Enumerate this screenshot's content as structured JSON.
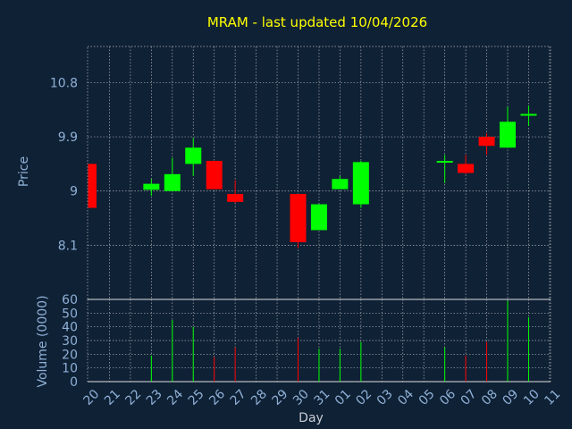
{
  "chart_data": {
    "type": "candlestick",
    "title": "MRAM - last updated 10/04/2026",
    "xlabel": "Day",
    "price_panel": {
      "ylabel": "Price",
      "yticks": [
        "8.1",
        "9",
        "9.9",
        "10.8"
      ],
      "ytick_values": [
        8.1,
        9.0,
        9.9,
        10.8
      ],
      "ylim": [
        7.2,
        11.4
      ],
      "grid": true
    },
    "volume_panel": {
      "ylabel": "Volume (0000)",
      "yticks": [
        "0",
        "10",
        "20",
        "30",
        "40",
        "50",
        "60"
      ],
      "ytick_values": [
        0,
        10,
        20,
        30,
        40,
        50,
        60
      ],
      "ylim": [
        0,
        60
      ],
      "grid": true
    },
    "x_labels": [
      "20",
      "21",
      "22",
      "23",
      "24",
      "25",
      "26",
      "27",
      "28",
      "29",
      "30",
      "31",
      "01",
      "02",
      "03",
      "04",
      "05",
      "06",
      "07",
      "08",
      "09",
      "10",
      "11"
    ],
    "candles": [
      {
        "day": "20",
        "open": 9.45,
        "high": 9.45,
        "low": 8.72,
        "close": 8.72,
        "volume": 0
      },
      {
        "day": "23",
        "open": 9.02,
        "high": 9.2,
        "low": 8.92,
        "close": 9.12,
        "volume": 19
      },
      {
        "day": "24",
        "open": 9.0,
        "high": 9.55,
        "low": 9.0,
        "close": 9.28,
        "volume": 45
      },
      {
        "day": "25",
        "open": 9.45,
        "high": 9.88,
        "low": 9.25,
        "close": 9.72,
        "volume": 40
      },
      {
        "day": "26",
        "open": 9.5,
        "high": 9.5,
        "low": 9.03,
        "close": 9.03,
        "volume": 18
      },
      {
        "day": "27",
        "open": 8.95,
        "high": 9.18,
        "low": 8.8,
        "close": 8.82,
        "volume": 25
      },
      {
        "day": "30",
        "open": 8.95,
        "high": 8.95,
        "low": 8.05,
        "close": 8.15,
        "volume": 32
      },
      {
        "day": "31",
        "open": 8.35,
        "high": 8.78,
        "low": 8.35,
        "close": 8.78,
        "volume": 24
      },
      {
        "day": "01",
        "open": 9.03,
        "high": 9.25,
        "low": 9.03,
        "close": 9.2,
        "volume": 24
      },
      {
        "day": "02",
        "open": 8.78,
        "high": 9.5,
        "low": 8.72,
        "close": 9.48,
        "volume": 29
      },
      {
        "day": "06",
        "open": 9.47,
        "high": 9.6,
        "low": 9.13,
        "close": 9.5,
        "volume": 25
      },
      {
        "day": "07",
        "open": 9.45,
        "high": 9.6,
        "low": 9.28,
        "close": 9.3,
        "volume": 19
      },
      {
        "day": "08",
        "open": 9.9,
        "high": 9.96,
        "low": 9.6,
        "close": 9.75,
        "volume": 29
      },
      {
        "day": "09",
        "open": 9.72,
        "high": 10.4,
        "low": 9.72,
        "close": 10.15,
        "volume": 59
      },
      {
        "day": "10",
        "open": 10.25,
        "high": 10.42,
        "low": 10.08,
        "close": 10.28,
        "volume": 47
      }
    ],
    "colors": {
      "up": "#00ff00",
      "down": "#ff0000",
      "grid": "#e0e0e0",
      "background": "#0f2135",
      "title": "#ffff00",
      "axis_label": "#8fb0d6"
    }
  }
}
